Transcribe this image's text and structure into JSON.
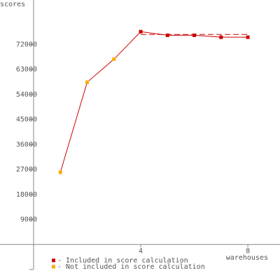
{
  "chart_data": {
    "type": "line",
    "ylabel": "scores",
    "xlabel": "warehouses",
    "x": [
      1,
      2,
      3,
      4,
      5,
      6,
      7,
      8
    ],
    "line_color": "#cc0000",
    "series": [
      {
        "name": "- Included in score calculation",
        "color": "#cc0000",
        "values": [
          null,
          null,
          null,
          76600,
          75300,
          75300,
          74600,
          74600
        ]
      },
      {
        "name": "- Not included in score calculation",
        "color": "#ffaa00",
        "values": [
          26000,
          58400,
          66700,
          null,
          null,
          null,
          null,
          null
        ]
      }
    ],
    "reference_line": {
      "value": 75600,
      "x": [
        4,
        8
      ],
      "color": "#cc0000"
    },
    "xlim": [
      0,
      9.2
    ],
    "xticks": [
      4,
      8
    ],
    "ylim": [
      -9000,
      88000
    ],
    "yticks": [
      -9000,
      9000,
      18000,
      27000,
      36000,
      45000,
      54000,
      63000,
      72000
    ],
    "ytick_labels_shown": [
      false,
      true,
      true,
      true,
      true,
      true,
      true,
      true,
      true
    ]
  }
}
